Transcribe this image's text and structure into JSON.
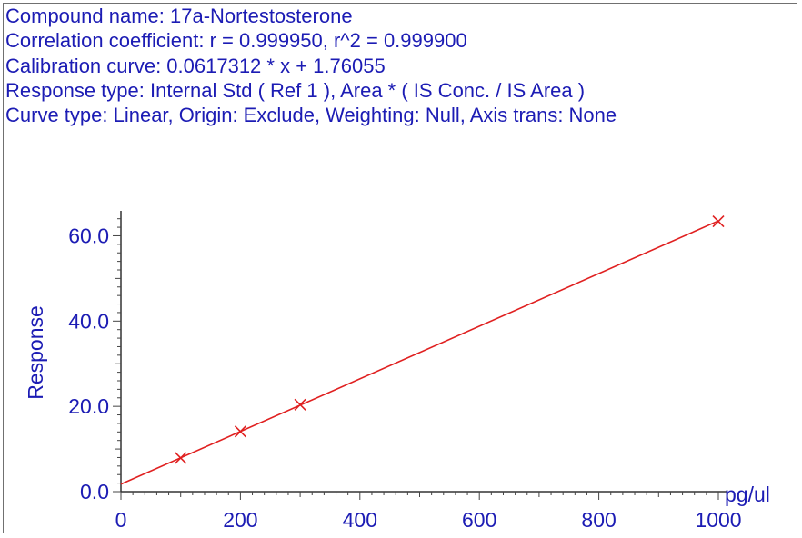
{
  "info": {
    "compound": "Compound name: 17a-Nortestosterone",
    "correlation": "Correlation coefficient: r = 0.999950, r^2 = 0.999900",
    "calibration": "Calibration curve: 0.0617312 * x + 1.76055",
    "response_type": "Response type: Internal Std ( Ref 1 ), Area * ( IS Conc. / IS Area )",
    "curve_type": "Curve type: Linear, Origin: Exclude, Weighting: Null, Axis trans: None"
  },
  "chart_data": {
    "type": "scatter",
    "xlabel": "pg/ul",
    "ylabel": "Response",
    "xlim": [
      0,
      1000
    ],
    "ylim": [
      0,
      65
    ],
    "x_ticks": [
      "0",
      "200",
      "400",
      "600",
      "800",
      "1000"
    ],
    "y_ticks": [
      "0.0",
      "20.0",
      "40.0",
      "60.0"
    ],
    "points": [
      {
        "x": 100,
        "y": 7.9
      },
      {
        "x": 200,
        "y": 14.1
      },
      {
        "x": 300,
        "y": 20.4
      },
      {
        "x": 1000,
        "y": 63.4
      }
    ],
    "fit": {
      "slope": 0.0617312,
      "intercept": 1.76055
    },
    "colors": {
      "axis": "#1c1cb4",
      "fit": "#e02020",
      "points": "#e02020",
      "text": "#1c1cb4"
    }
  }
}
